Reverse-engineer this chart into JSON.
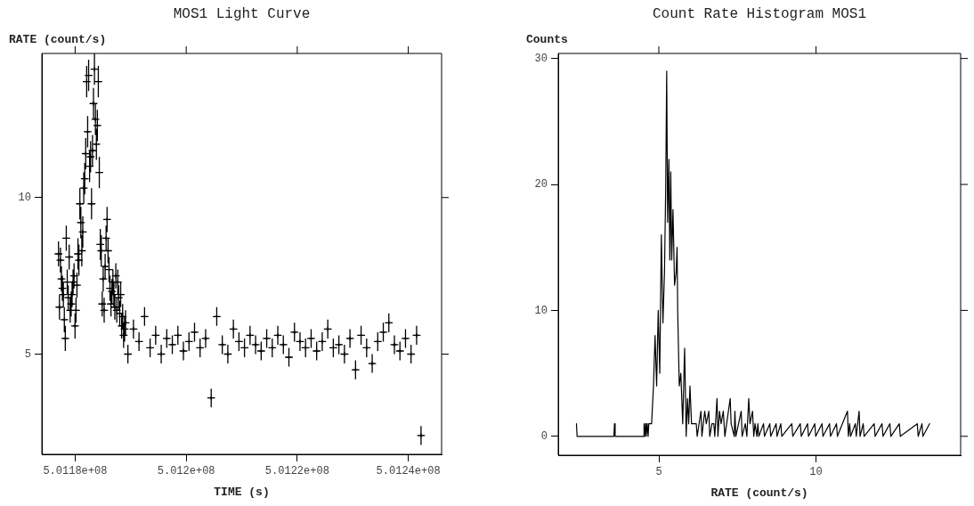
{
  "chart_data": [
    {
      "type": "scatter",
      "title": "MOS1 Light Curve",
      "xlabel": "TIME (s)",
      "ylabel": "RATE (count/s)",
      "color": "#000000",
      "marker": "cross",
      "x": [
        501177000,
        501177175,
        501177350,
        501177525,
        501177700,
        501177875,
        501178050,
        501178225,
        501178400,
        501178575,
        501178750,
        501178925,
        501179100,
        501179275,
        501179450,
        501179625,
        501179800,
        501179975,
        501180150,
        501180325,
        501180500,
        501180675,
        501180850,
        501181025,
        501181200,
        501181375,
        501181550,
        501181725,
        501181900,
        501182075,
        501182250,
        501182425,
        501182600,
        501182775,
        501182950,
        501183125,
        501183300,
        501183475,
        501183650,
        501183825,
        501184000,
        501184175,
        501184350,
        501184525,
        501184700,
        501184875,
        501185050,
        501185225,
        501185400,
        501185575,
        501185750,
        501185925,
        501186100,
        501186275,
        501186450,
        501186625,
        501186800,
        501186975,
        501187150,
        501187325,
        501187500,
        501187675,
        501187850,
        501188025,
        501188200,
        501188375,
        501188550,
        501188725,
        501188900,
        501189075,
        501189500,
        501190500,
        501191500,
        501192500,
        501193500,
        501194500,
        501195500,
        501196500,
        501197500,
        501198500,
        501199500,
        501200500,
        501201500,
        501202500,
        501203500,
        501204500,
        501205500,
        501206500,
        501207500,
        501208500,
        501209500,
        501210500,
        501211500,
        501212500,
        501213500,
        501214500,
        501215500,
        501216500,
        501217500,
        501218500,
        501219500,
        501220500,
        501221500,
        501222500,
        501223500,
        501224500,
        501225500,
        501226500,
        501227500,
        501228500,
        501229500,
        501230500,
        501231500,
        501232500,
        501233500,
        501234500,
        501235500,
        501236500,
        501237500,
        501238500,
        501239500,
        501240500,
        501241500,
        501242300
      ],
      "values": [
        8.2,
        6.5,
        8.0,
        7.4,
        7.1,
        6.9,
        6.1,
        5.5,
        8.7,
        7.3,
        6.8,
        8.1,
        6.4,
        6.6,
        6.9,
        7.3,
        7.5,
        5.9,
        6.4,
        7.2,
        8.2,
        8.0,
        9.8,
        9.2,
        8.3,
        8.9,
        10.3,
        10.6,
        11.4,
        13.7,
        12.1,
        13.9,
        11.0,
        11.3,
        9.8,
        11.5,
        13.0,
        14.1,
        12.5,
        11.7,
        12.3,
        13.7,
        10.8,
        8.5,
        8.3,
        6.6,
        7.4,
        6.4,
        7.8,
        8.7,
        9.3,
        8.3,
        7.7,
        7.1,
        6.6,
        7.0,
        7.3,
        6.9,
        6.5,
        7.5,
        6.4,
        7.3,
        6.8,
        6.3,
        6.9,
        5.9,
        6.2,
        5.6,
        5.8,
        6.0,
        5.0,
        5.8,
        5.4,
        6.2,
        5.2,
        5.6,
        5.0,
        5.5,
        5.3,
        5.6,
        5.1,
        5.4,
        5.7,
        5.2,
        5.5,
        3.6,
        6.2,
        5.3,
        5.0,
        5.8,
        5.4,
        5.2,
        5.6,
        5.3,
        5.1,
        5.5,
        5.2,
        5.6,
        5.3,
        4.9,
        5.7,
        5.4,
        5.2,
        5.5,
        5.1,
        5.4,
        5.8,
        5.2,
        5.3,
        5.0,
        5.5,
        4.5,
        5.6,
        5.2,
        4.7,
        5.4,
        5.7,
        6.0,
        5.3,
        5.1,
        5.5,
        5.0,
        5.6,
        2.4
      ],
      "errors": [
        0.4,
        0.4,
        0.4,
        0.4,
        0.4,
        0.4,
        0.4,
        0.4,
        0.4,
        0.4,
        0.4,
        0.4,
        0.4,
        0.4,
        0.4,
        0.4,
        0.4,
        0.4,
        0.4,
        0.4,
        0.5,
        0.5,
        0.5,
        0.5,
        0.5,
        0.5,
        0.5,
        0.5,
        0.5,
        0.5,
        0.5,
        0.5,
        0.5,
        0.5,
        0.5,
        0.5,
        0.5,
        0.5,
        0.5,
        0.5,
        0.5,
        0.5,
        0.5,
        0.5,
        0.5,
        0.4,
        0.4,
        0.4,
        0.4,
        0.4,
        0.4,
        0.4,
        0.4,
        0.4,
        0.4,
        0.4,
        0.4,
        0.4,
        0.4,
        0.4,
        0.4,
        0.4,
        0.4,
        0.4,
        0.4,
        0.4,
        0.4,
        0.4,
        0.4,
        0.4,
        0.3,
        0.3,
        0.3,
        0.3,
        0.3,
        0.3,
        0.3,
        0.3,
        0.3,
        0.3,
        0.3,
        0.3,
        0.3,
        0.3,
        0.3,
        0.3,
        0.3,
        0.3,
        0.3,
        0.3,
        0.3,
        0.3,
        0.3,
        0.3,
        0.3,
        0.3,
        0.3,
        0.3,
        0.3,
        0.3,
        0.3,
        0.3,
        0.3,
        0.3,
        0.3,
        0.3,
        0.3,
        0.3,
        0.3,
        0.3,
        0.3,
        0.3,
        0.3,
        0.3,
        0.3,
        0.3,
        0.3,
        0.3,
        0.3,
        0.3,
        0.3,
        0.3,
        0.3,
        0.3
      ],
      "xerrors": [
        700,
        700,
        700,
        700,
        700,
        700,
        700,
        700,
        700,
        700,
        700,
        700,
        700,
        700,
        700,
        700,
        700,
        700,
        700,
        700,
        700,
        700,
        700,
        700,
        700,
        700,
        700,
        700,
        700,
        700,
        700,
        700,
        700,
        700,
        700,
        700,
        700,
        700,
        700,
        700,
        700,
        700,
        700,
        700,
        700,
        700,
        700,
        700,
        700,
        700,
        700,
        700,
        700,
        700,
        700,
        700,
        700,
        700,
        700,
        700,
        700,
        700,
        700,
        700,
        700,
        700,
        700,
        700,
        700,
        700,
        700,
        700,
        700,
        700,
        700,
        700,
        700,
        700,
        700,
        700,
        700,
        700,
        700,
        700,
        700,
        700,
        700,
        700,
        700,
        700,
        700,
        700,
        700,
        700,
        700,
        700,
        700,
        700,
        700,
        700,
        700,
        700,
        700,
        700,
        700,
        700,
        700,
        700,
        700,
        700,
        700,
        700,
        700,
        700,
        700,
        700,
        700,
        700,
        700,
        700,
        700,
        700,
        700,
        700
      ],
      "xlim": [
        501174000,
        501246000
      ],
      "ylim": [
        1.8,
        14.6
      ],
      "xticks": [
        {
          "value": 501180000,
          "label": "5.0118e+08"
        },
        {
          "value": 501200000,
          "label": "5.012e+08"
        },
        {
          "value": 501220000,
          "label": "5.0122e+08"
        },
        {
          "value": 501240000,
          "label": "5.0124e+08"
        }
      ],
      "yticks": [
        5,
        10
      ]
    },
    {
      "type": "line",
      "title": "Count Rate Histogram MOS1",
      "xlabel": "RATE (count/s)",
      "ylabel": "Counts",
      "color": "#000000",
      "marker": "none",
      "x": [
        2.38,
        2.4,
        3.57,
        3.59,
        3.61,
        4.52,
        4.53,
        4.55,
        4.58,
        4.6,
        4.63,
        4.66,
        4.68,
        4.71,
        4.77,
        4.83,
        4.88,
        4.93,
        4.98,
        5.03,
        5.08,
        5.13,
        5.18,
        5.22,
        5.25,
        5.28,
        5.32,
        5.35,
        5.38,
        5.41,
        5.45,
        5.5,
        5.55,
        5.58,
        5.6,
        5.65,
        5.7,
        5.76,
        5.82,
        5.87,
        5.91,
        5.95,
        5.99,
        6.04,
        6.1,
        6.19,
        6.22,
        6.34,
        6.37,
        6.46,
        6.51,
        6.59,
        6.62,
        6.69,
        6.75,
        6.78,
        6.85,
        6.88,
        6.93,
        6.98,
        7.05,
        7.1,
        7.27,
        7.3,
        7.4,
        7.42,
        7.45,
        7.62,
        7.65,
        7.75,
        7.8,
        7.86,
        7.9,
        7.98,
        8.02,
        8.06,
        8.12,
        8.15,
        8.18,
        8.33,
        8.36,
        8.53,
        8.56,
        8.73,
        8.76,
        8.88,
        8.91,
        9.23,
        9.26,
        9.5,
        9.53,
        9.73,
        9.76,
        9.96,
        9.99,
        10.19,
        10.22,
        10.43,
        10.46,
        10.65,
        10.68,
        11.0,
        11.03,
        11.07,
        11.1,
        11.25,
        11.28,
        11.37,
        11.4,
        11.5,
        11.53,
        11.85,
        11.88,
        12.1,
        12.13,
        12.35,
        12.38,
        12.65,
        12.68,
        13.22,
        13.25,
        13.37,
        13.4,
        13.61
      ],
      "values": [
        1,
        0,
        0,
        1,
        0,
        0,
        1,
        0,
        1,
        0,
        1,
        0,
        1,
        1,
        1,
        4,
        8,
        4,
        10,
        5,
        16,
        9,
        13,
        20,
        29,
        17,
        22,
        14,
        21,
        14,
        18,
        12,
        13,
        15,
        10,
        4,
        5,
        1,
        7,
        0,
        3,
        1,
        4,
        1,
        1,
        1,
        0,
        2,
        0,
        2,
        1,
        2,
        0,
        1,
        1,
        0,
        3,
        0,
        2,
        1,
        2,
        0,
        3,
        1,
        0,
        2,
        0,
        2,
        0,
        1,
        0,
        3,
        1,
        2,
        0,
        1,
        0,
        1,
        0,
        1,
        0,
        1,
        0,
        1,
        0,
        1,
        0,
        1,
        0,
        1,
        0,
        1,
        0,
        1,
        0,
        1,
        0,
        1,
        0,
        1,
        0,
        2,
        0,
        1,
        0,
        1,
        0,
        2,
        0,
        1,
        0,
        1,
        0,
        1,
        0,
        1,
        0,
        1,
        0,
        1,
        0,
        1,
        0,
        1
      ],
      "xlim": [
        1.8,
        14.6
      ],
      "ylim": [
        -1.5,
        30.4
      ],
      "xticks": [
        5,
        10
      ],
      "yticks": [
        0,
        10,
        20,
        30
      ]
    }
  ]
}
